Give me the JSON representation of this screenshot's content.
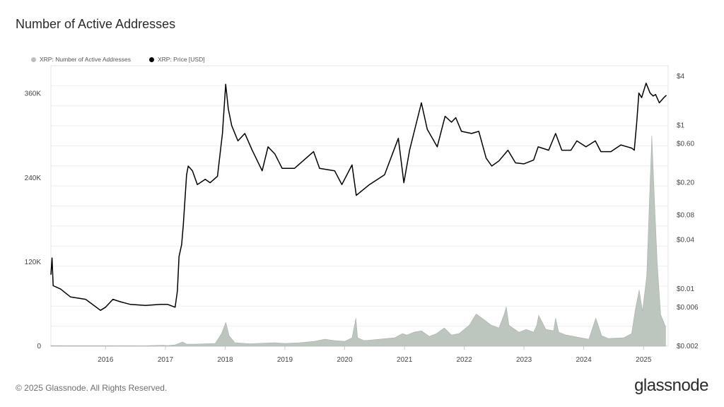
{
  "title": "Number of Active Addresses",
  "footer": "© 2025 Glassnode. All Rights Reserved.",
  "brand": "glassnode",
  "colors": {
    "addresses": "#b8c2ba",
    "price": "#000000",
    "grid": "#eeeeee",
    "axis_text": "#444444"
  },
  "chart_data": {
    "type": "area+line",
    "title": "Number of Active Addresses",
    "legend_position": "top-left",
    "grid": true,
    "series": [
      {
        "name": "XRP: Number of Active Addresses",
        "type": "area",
        "axis": "left",
        "color": "#b8c2ba",
        "points": [
          [
            "2015-02-01",
            1000
          ],
          [
            "2015-06-01",
            800
          ],
          [
            "2016-01-01",
            800
          ],
          [
            "2016-09-01",
            700
          ],
          [
            "2016-12-15",
            1500
          ],
          [
            "2017-01-15",
            900
          ],
          [
            "2017-03-01",
            2000
          ],
          [
            "2017-04-15",
            6000
          ],
          [
            "2017-05-10",
            3000
          ],
          [
            "2017-07-01",
            3000
          ],
          [
            "2017-09-01",
            3500
          ],
          [
            "2017-11-01",
            4000
          ],
          [
            "2017-12-10",
            18000
          ],
          [
            "2018-01-05",
            34000
          ],
          [
            "2018-01-25",
            15000
          ],
          [
            "2018-03-01",
            5000
          ],
          [
            "2018-06-01",
            3500
          ],
          [
            "2018-09-01",
            4500
          ],
          [
            "2018-11-01",
            5000
          ],
          [
            "2019-01-01",
            4000
          ],
          [
            "2019-04-01",
            5000
          ],
          [
            "2019-07-01",
            7000
          ],
          [
            "2019-09-01",
            10000
          ],
          [
            "2019-11-01",
            8000
          ],
          [
            "2020-01-01",
            7000
          ],
          [
            "2020-02-15",
            12000
          ],
          [
            "2020-03-10",
            40000
          ],
          [
            "2020-03-20",
            12000
          ],
          [
            "2020-05-01",
            8000
          ],
          [
            "2020-08-01",
            10000
          ],
          [
            "2020-11-01",
            12000
          ],
          [
            "2020-12-20",
            18000
          ],
          [
            "2021-01-15",
            16000
          ],
          [
            "2021-03-01",
            20000
          ],
          [
            "2021-04-15",
            22000
          ],
          [
            "2021-06-01",
            14000
          ],
          [
            "2021-07-15",
            18000
          ],
          [
            "2021-09-01",
            26000
          ],
          [
            "2021-10-15",
            16000
          ],
          [
            "2021-12-01",
            18000
          ],
          [
            "2022-02-01",
            30000
          ],
          [
            "2022-03-15",
            46000
          ],
          [
            "2022-05-01",
            38000
          ],
          [
            "2022-06-15",
            30000
          ],
          [
            "2022-08-01",
            26000
          ],
          [
            "2022-09-01",
            45000
          ],
          [
            "2022-09-15",
            56000
          ],
          [
            "2022-10-01",
            30000
          ],
          [
            "2022-12-01",
            20000
          ],
          [
            "2023-01-15",
            24000
          ],
          [
            "2023-03-01",
            20000
          ],
          [
            "2023-03-20",
            30000
          ],
          [
            "2023-04-01",
            44000
          ],
          [
            "2023-05-15",
            24000
          ],
          [
            "2023-07-01",
            22000
          ],
          [
            "2023-07-13",
            40000
          ],
          [
            "2023-08-01",
            20000
          ],
          [
            "2023-09-15",
            16000
          ],
          [
            "2023-11-01",
            14000
          ],
          [
            "2023-12-15",
            12000
          ],
          [
            "2024-02-01",
            10000
          ],
          [
            "2024-03-15",
            40000
          ],
          [
            "2024-04-20",
            15000
          ],
          [
            "2024-06-01",
            11000
          ],
          [
            "2024-09-01",
            12000
          ],
          [
            "2024-10-20",
            18000
          ],
          [
            "2024-11-10",
            50000
          ],
          [
            "2024-12-05",
            80000
          ],
          [
            "2024-12-25",
            50000
          ],
          [
            "2025-01-20",
            100000
          ],
          [
            "2025-02-20",
            300000
          ],
          [
            "2025-03-10",
            200000
          ],
          [
            "2025-03-25",
            120000
          ],
          [
            "2025-04-15",
            45000
          ],
          [
            "2025-05-15",
            28000
          ]
        ]
      },
      {
        "name": "XRP: Price [USD]",
        "type": "line",
        "axis": "right",
        "color": "#000000",
        "points": [
          [
            "2015-02-01",
            0.015
          ],
          [
            "2015-02-08",
            0.024
          ],
          [
            "2015-02-15",
            0.011
          ],
          [
            "2015-04-01",
            0.01
          ],
          [
            "2015-06-01",
            0.008
          ],
          [
            "2015-09-01",
            0.0075
          ],
          [
            "2015-12-01",
            0.0055
          ],
          [
            "2016-01-01",
            0.006
          ],
          [
            "2016-02-15",
            0.0075
          ],
          [
            "2016-04-01",
            0.007
          ],
          [
            "2016-06-01",
            0.0065
          ],
          [
            "2016-09-01",
            0.0063
          ],
          [
            "2016-12-01",
            0.0065
          ],
          [
            "2017-01-15",
            0.0065
          ],
          [
            "2017-03-01",
            0.006
          ],
          [
            "2017-03-15",
            0.0095
          ],
          [
            "2017-03-25",
            0.025
          ],
          [
            "2017-04-10",
            0.035
          ],
          [
            "2017-04-20",
            0.06
          ],
          [
            "2017-05-10",
            0.25
          ],
          [
            "2017-05-20",
            0.32
          ],
          [
            "2017-06-15",
            0.28
          ],
          [
            "2017-07-15",
            0.19
          ],
          [
            "2017-09-01",
            0.22
          ],
          [
            "2017-10-01",
            0.2
          ],
          [
            "2017-11-15",
            0.24
          ],
          [
            "2017-12-15",
            0.8
          ],
          [
            "2018-01-04",
            3.2
          ],
          [
            "2018-01-20",
            1.6
          ],
          [
            "2018-02-10",
            1.0
          ],
          [
            "2018-03-20",
            0.65
          ],
          [
            "2018-05-01",
            0.8
          ],
          [
            "2018-06-15",
            0.5
          ],
          [
            "2018-08-15",
            0.28
          ],
          [
            "2018-09-20",
            0.55
          ],
          [
            "2018-11-01",
            0.45
          ],
          [
            "2018-12-15",
            0.3
          ],
          [
            "2019-03-01",
            0.3
          ],
          [
            "2019-06-25",
            0.48
          ],
          [
            "2019-08-01",
            0.3
          ],
          [
            "2019-11-01",
            0.28
          ],
          [
            "2019-12-15",
            0.19
          ],
          [
            "2020-02-15",
            0.33
          ],
          [
            "2020-03-12",
            0.14
          ],
          [
            "2020-06-01",
            0.19
          ],
          [
            "2020-09-01",
            0.25
          ],
          [
            "2020-11-24",
            0.7
          ],
          [
            "2020-12-28",
            0.2
          ],
          [
            "2021-02-01",
            0.5
          ],
          [
            "2021-04-14",
            1.9
          ],
          [
            "2021-05-20",
            0.9
          ],
          [
            "2021-07-20",
            0.55
          ],
          [
            "2021-09-06",
            1.3
          ],
          [
            "2021-10-15",
            1.1
          ],
          [
            "2021-11-10",
            1.25
          ],
          [
            "2021-12-15",
            0.85
          ],
          [
            "2022-02-15",
            0.8
          ],
          [
            "2022-03-31",
            0.85
          ],
          [
            "2022-05-15",
            0.4
          ],
          [
            "2022-06-18",
            0.32
          ],
          [
            "2022-08-01",
            0.37
          ],
          [
            "2022-09-25",
            0.5
          ],
          [
            "2022-11-10",
            0.35
          ],
          [
            "2022-12-31",
            0.34
          ],
          [
            "2023-03-01",
            0.38
          ],
          [
            "2023-03-29",
            0.55
          ],
          [
            "2023-06-01",
            0.5
          ],
          [
            "2023-07-13",
            0.8
          ],
          [
            "2023-08-20",
            0.5
          ],
          [
            "2023-10-15",
            0.5
          ],
          [
            "2023-11-20",
            0.65
          ],
          [
            "2024-01-15",
            0.55
          ],
          [
            "2024-03-12",
            0.65
          ],
          [
            "2024-04-15",
            0.48
          ],
          [
            "2024-06-15",
            0.48
          ],
          [
            "2024-08-15",
            0.58
          ],
          [
            "2024-10-20",
            0.53
          ],
          [
            "2024-11-05",
            0.5
          ],
          [
            "2024-11-20",
            1.1
          ],
          [
            "2024-12-03",
            2.5
          ],
          [
            "2024-12-20",
            2.2
          ],
          [
            "2025-01-16",
            3.3
          ],
          [
            "2025-02-10",
            2.5
          ],
          [
            "2025-03-01",
            2.3
          ],
          [
            "2025-03-15",
            2.4
          ],
          [
            "2025-04-07",
            1.9
          ],
          [
            "2025-05-05",
            2.2
          ],
          [
            "2025-05-20",
            2.35
          ]
        ]
      }
    ],
    "x_axis": {
      "type": "date",
      "range": [
        "2015-02-01",
        "2025-05-31"
      ],
      "ticks": [
        {
          "value": "2016-01-01",
          "label": "2016"
        },
        {
          "value": "2017-01-01",
          "label": "2017"
        },
        {
          "value": "2018-01-01",
          "label": "2018"
        },
        {
          "value": "2019-01-01",
          "label": "2019"
        },
        {
          "value": "2020-01-01",
          "label": "2020"
        },
        {
          "value": "2021-01-01",
          "label": "2021"
        },
        {
          "value": "2022-01-01",
          "label": "2022"
        },
        {
          "value": "2023-01-01",
          "label": "2023"
        },
        {
          "value": "2024-01-01",
          "label": "2024"
        },
        {
          "value": "2025-01-01",
          "label": "2025"
        }
      ]
    },
    "y_left": {
      "scale": "linear",
      "range": [
        0,
        400000
      ],
      "ticks": [
        {
          "value": 0,
          "label": "0"
        },
        {
          "value": 120000,
          "label": "120K"
        },
        {
          "value": 240000,
          "label": "240K"
        },
        {
          "value": 360000,
          "label": "360K"
        }
      ]
    },
    "y_right": {
      "scale": "log",
      "range": [
        0.002,
        5.4
      ],
      "ticks": [
        {
          "value": 4,
          "label": "$4"
        },
        {
          "value": 1,
          "label": "$1"
        },
        {
          "value": 0.6,
          "label": "$0.60"
        },
        {
          "value": 0.2,
          "label": "$0.20"
        },
        {
          "value": 0.08,
          "label": "$0.08"
        },
        {
          "value": 0.04,
          "label": "$0.04"
        },
        {
          "value": 0.01,
          "label": "$0.01"
        },
        {
          "value": 0.006,
          "label": "$0.006"
        },
        {
          "value": 0.002,
          "label": "$0.002"
        }
      ]
    }
  }
}
